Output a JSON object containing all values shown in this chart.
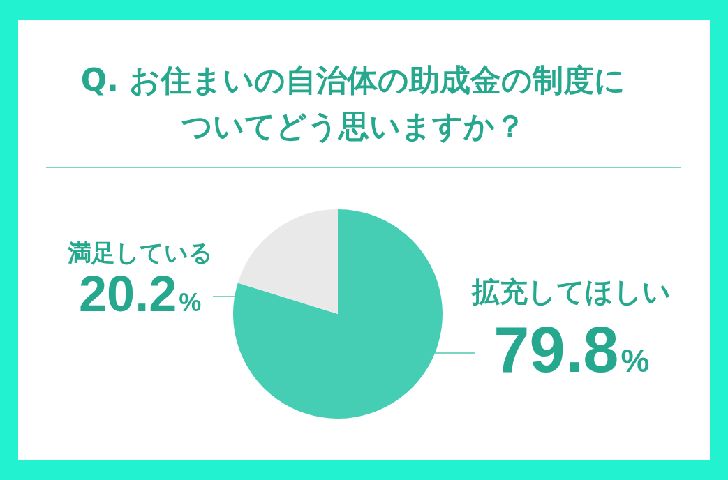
{
  "chart_data": {
    "type": "pie",
    "title": "Q. お住まいの自治体の助成金の制度についてどう思いますか？",
    "categories": [
      "拡充してほしい",
      "満足している"
    ],
    "values": [
      79.8,
      20.2
    ],
    "colors": [
      "#45ceb3",
      "#e9e9e9"
    ],
    "value_labels": [
      "79.8%",
      "20.2%"
    ],
    "legend": false
  }
}
